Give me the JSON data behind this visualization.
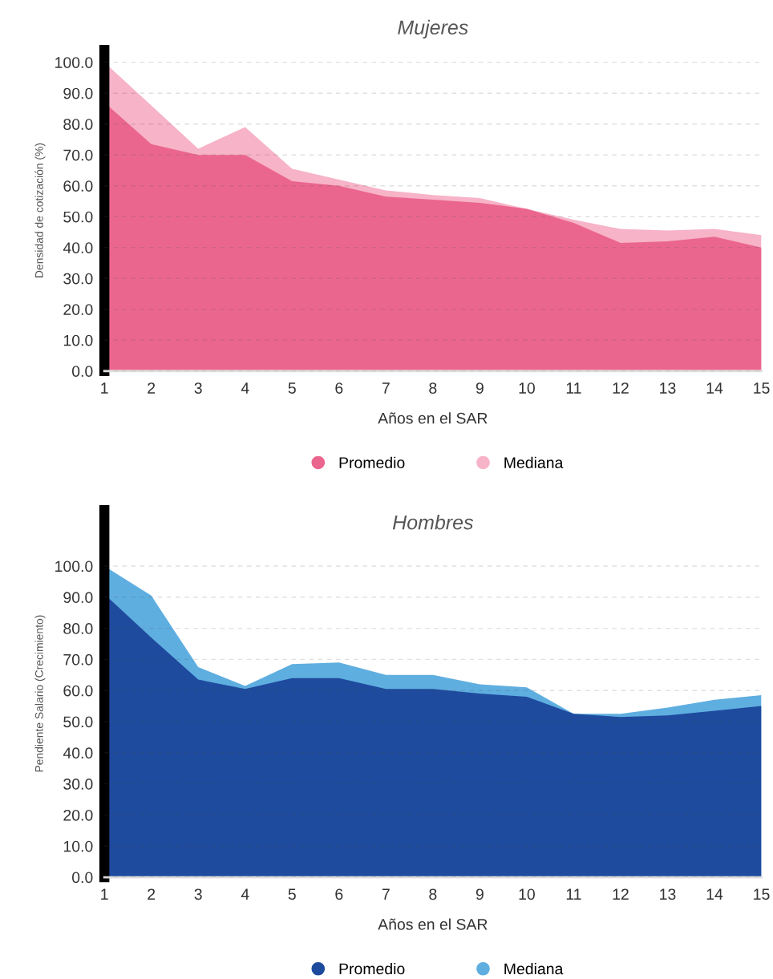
{
  "chart_data": [
    {
      "type": "area",
      "title": "Mujeres",
      "xlabel": "Años en el SAR",
      "ylabel": "Densidad de cotización (%)",
      "categories": [
        "1",
        "2",
        "3",
        "4",
        "5",
        "6",
        "7",
        "8",
        "9",
        "10",
        "11",
        "12",
        "13",
        "14",
        "15"
      ],
      "series": [
        {
          "name": "Promedio",
          "color": "#eb668f",
          "values": [
            87,
            73.5,
            70,
            70,
            61.5,
            60,
            56.5,
            55.5,
            54.5,
            52.5,
            48,
            41.5,
            42,
            43.5,
            40
          ]
        },
        {
          "name": "Mediana",
          "color": "#f7b3c8",
          "values": [
            100,
            86,
            72,
            79,
            65.5,
            62,
            58.5,
            57,
            56,
            52.5,
            49,
            46,
            45.5,
            46,
            44
          ]
        }
      ],
      "ylim": [
        0,
        104
      ],
      "yticks": [
        {
          "value": 0,
          "label": "0.0"
        },
        {
          "value": 10,
          "label": "10.0"
        },
        {
          "value": 20,
          "label": "20.0"
        },
        {
          "value": 30,
          "label": "30.0"
        },
        {
          "value": 40,
          "label": "40.0"
        },
        {
          "value": 50,
          "label": "50.0"
        },
        {
          "value": 60,
          "label": "60.0"
        },
        {
          "value": 70,
          "label": "70.0"
        },
        {
          "value": 80,
          "label": "80.0"
        },
        {
          "value": 90,
          "label": "90.0"
        },
        {
          "value": 100,
          "label": "100.0"
        }
      ],
      "grid": "y",
      "legend": "bottom"
    },
    {
      "type": "area",
      "title": "Hombres",
      "xlabel": "Años en el SAR",
      "ylabel": "Pendiente Salario (Crecimiento)",
      "categories": [
        "1",
        "2",
        "3",
        "4",
        "5",
        "6",
        "7",
        "8",
        "9",
        "10",
        "11",
        "12",
        "13",
        "14",
        "15"
      ],
      "series": [
        {
          "name": "Promedio",
          "color": "#1f4b9e",
          "values": [
            91,
            77,
            63.5,
            60.5,
            64,
            64,
            60.5,
            60.5,
            59,
            58,
            52.5,
            51.5,
            52,
            53.5,
            55
          ]
        },
        {
          "name": "Mediana",
          "color": "#5faee0",
          "values": [
            100,
            90.5,
            67.5,
            61.5,
            68.5,
            69,
            65,
            65,
            62,
            61,
            52.5,
            52.5,
            54.5,
            57,
            58.5
          ]
        }
      ],
      "ylim": [
        0,
        118
      ],
      "yticks": [
        {
          "value": 0,
          "label": "0.0"
        },
        {
          "value": 10,
          "label": "10.0"
        },
        {
          "value": 20,
          "label": "20.0"
        },
        {
          "value": 30,
          "label": "30.0"
        },
        {
          "value": 40,
          "label": "40.0"
        },
        {
          "value": 50,
          "label": "50.0"
        },
        {
          "value": 60,
          "label": "60.0"
        },
        {
          "value": 70,
          "label": "70.0"
        },
        {
          "value": 80,
          "label": "80.0"
        },
        {
          "value": 90,
          "label": "90.0"
        },
        {
          "value": 100,
          "label": "100.0"
        }
      ],
      "grid": "y",
      "legend": "bottom"
    }
  ]
}
